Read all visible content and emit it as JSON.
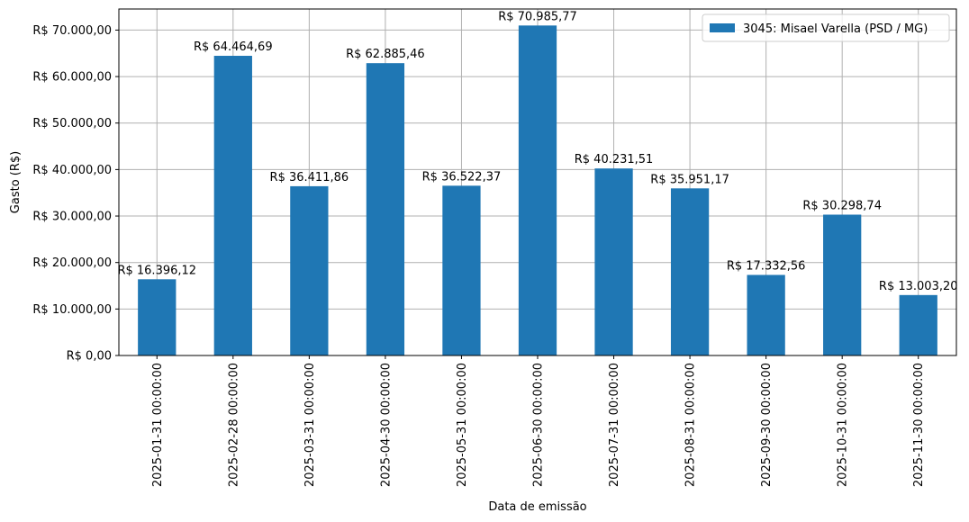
{
  "chart_data": {
    "type": "bar",
    "categories": [
      "2025-01-31 00:00:00",
      "2025-02-28 00:00:00",
      "2025-03-31 00:00:00",
      "2025-04-30 00:00:00",
      "2025-05-31 00:00:00",
      "2025-06-30 00:00:00",
      "2025-07-31 00:00:00",
      "2025-08-31 00:00:00",
      "2025-09-30 00:00:00",
      "2025-10-31 00:00:00",
      "2025-11-30 00:00:00"
    ],
    "series": [
      {
        "name": "3045: Misael Varella (PSD / MG)",
        "color": "#1f77b4",
        "values": [
          16396.12,
          64464.69,
          36411.86,
          62885.46,
          36522.37,
          70985.77,
          40231.51,
          35951.17,
          17332.56,
          30298.74,
          13003.2
        ]
      }
    ],
    "data_labels": [
      "R$ 16.396,12",
      "R$ 64.464,69",
      "R$ 36.411,86",
      "R$ 62.885,46",
      "R$ 36.522,37",
      "R$ 70.985,77",
      "R$ 40.231,51",
      "R$ 35.951,17",
      "R$ 17.332,56",
      "R$ 30.298,74",
      "R$ 13.003,20"
    ],
    "y_ticks": [
      0,
      10000,
      20000,
      30000,
      40000,
      50000,
      60000,
      70000
    ],
    "y_tick_labels": [
      "R$ 0,00",
      "R$ 10.000,00",
      "R$ 20.000,00",
      "R$ 30.000,00",
      "R$ 40.000,00",
      "R$ 50.000,00",
      "R$ 60.000,00",
      "R$ 70.000,00"
    ],
    "xlabel": "Data de emissão",
    "ylabel": "Gasto (R$)",
    "ylim": [
      0,
      74535
    ],
    "grid": true,
    "legend_position": "top-right"
  }
}
